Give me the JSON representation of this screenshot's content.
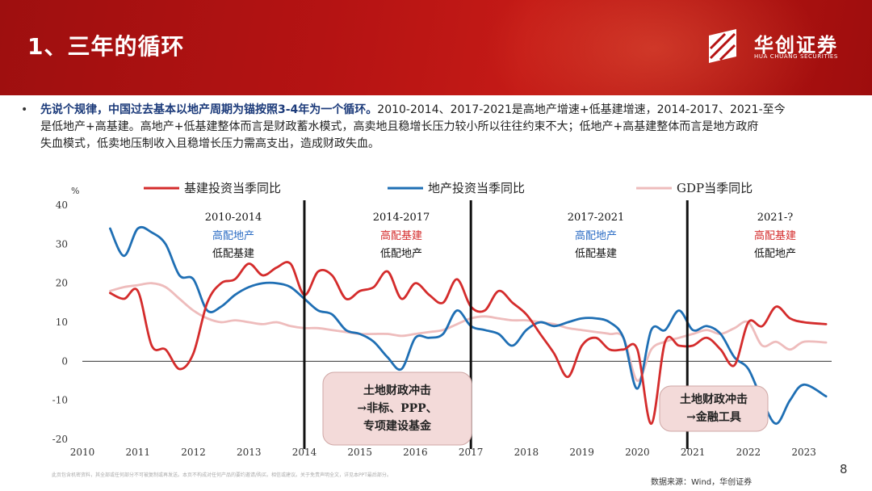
{
  "header": {
    "title": "1、三年的循环",
    "brand_cn": "华创证券",
    "brand_en": "HUA CHUANG SECURITIES"
  },
  "bullet": {
    "lead": "先说个规律，中国过去基本以地产周期为锚按照3-4年为一个循环。",
    "line1_rest": "2010-2014、2017-2021是高地产增速+低基建增速，2014-2017、2021-至今",
    "line2": "是低地产+高基建。高地产+低基建整体而言是财政蓄水模式，高卖地且稳增长压力较小所以往往约束不大；低地产+高基建整体而言是地方政府",
    "line3": "失血模式，低卖地压制收入且稳增长压力需高支出，造成财政失血。"
  },
  "colors": {
    "infra": "#d42c2c",
    "property": "#1f6fb4",
    "gdp": "#eebcbc",
    "blue_text": "#2b6cc4",
    "red_text": "#d42c2c",
    "box_fill": "#f3dad9"
  },
  "chart_data": {
    "type": "line",
    "ylabel": "%",
    "ylim": [
      -20,
      40
    ],
    "yticks": [
      40,
      30,
      20,
      10,
      0,
      -10,
      -20
    ],
    "xlim": [
      2010,
      2023.5
    ],
    "xticks": [
      2010,
      2011,
      2012,
      2013,
      2014,
      2015,
      2016,
      2017,
      2018,
      2019,
      2020,
      2021,
      2022,
      2023
    ],
    "dividers": [
      2014,
      2017,
      2020.9
    ],
    "series": [
      {
        "name": "基建投资当季同比",
        "color": "#d42c2c",
        "points": [
          [
            2010.5,
            17.5
          ],
          [
            2010.75,
            16
          ],
          [
            2011,
            18
          ],
          [
            2011.25,
            4
          ],
          [
            2011.5,
            3
          ],
          [
            2011.75,
            -2
          ],
          [
            2012,
            2
          ],
          [
            2012.25,
            15
          ],
          [
            2012.5,
            20
          ],
          [
            2012.75,
            21
          ],
          [
            2013,
            25
          ],
          [
            2013.25,
            22
          ],
          [
            2013.5,
            24
          ],
          [
            2013.75,
            25
          ],
          [
            2014,
            17
          ],
          [
            2014.25,
            23
          ],
          [
            2014.5,
            22
          ],
          [
            2014.75,
            16
          ],
          [
            2015,
            18
          ],
          [
            2015.25,
            19
          ],
          [
            2015.5,
            23
          ],
          [
            2015.75,
            16
          ],
          [
            2016,
            20
          ],
          [
            2016.25,
            17
          ],
          [
            2016.5,
            15
          ],
          [
            2016.75,
            21
          ],
          [
            2017,
            14
          ],
          [
            2017.25,
            13
          ],
          [
            2017.5,
            18
          ],
          [
            2017.75,
            15
          ],
          [
            2018,
            12
          ],
          [
            2018.25,
            7
          ],
          [
            2018.5,
            2
          ],
          [
            2018.75,
            -4
          ],
          [
            2019,
            4
          ],
          [
            2019.25,
            6
          ],
          [
            2019.5,
            3
          ],
          [
            2019.75,
            3
          ],
          [
            2020,
            3
          ],
          [
            2020.25,
            -16
          ],
          [
            2020.5,
            5
          ],
          [
            2020.75,
            4
          ],
          [
            2021,
            4
          ],
          [
            2021.25,
            6
          ],
          [
            2021.5,
            3
          ],
          [
            2021.75,
            -1
          ],
          [
            2022,
            10
          ],
          [
            2022.25,
            9
          ],
          [
            2022.5,
            14
          ],
          [
            2022.75,
            11
          ],
          [
            2023,
            10
          ],
          [
            2023.4,
            9.5
          ]
        ]
      },
      {
        "name": "地产投资当季同比",
        "color": "#1f6fb4",
        "points": [
          [
            2010.5,
            34
          ],
          [
            2010.75,
            27
          ],
          [
            2011,
            34
          ],
          [
            2011.25,
            33
          ],
          [
            2011.5,
            30
          ],
          [
            2011.75,
            22
          ],
          [
            2012,
            21
          ],
          [
            2012.25,
            13
          ],
          [
            2012.5,
            14
          ],
          [
            2012.75,
            17
          ],
          [
            2013,
            19
          ],
          [
            2013.25,
            20
          ],
          [
            2013.5,
            20
          ],
          [
            2013.75,
            19
          ],
          [
            2014,
            16
          ],
          [
            2014.25,
            13
          ],
          [
            2014.5,
            12
          ],
          [
            2014.75,
            8
          ],
          [
            2015,
            7
          ],
          [
            2015.25,
            5
          ],
          [
            2015.5,
            1
          ],
          [
            2015.75,
            -2
          ],
          [
            2016,
            6
          ],
          [
            2016.25,
            6
          ],
          [
            2016.5,
            7
          ],
          [
            2016.75,
            13
          ],
          [
            2017,
            9
          ],
          [
            2017.25,
            8
          ],
          [
            2017.5,
            7
          ],
          [
            2017.75,
            4
          ],
          [
            2018,
            8
          ],
          [
            2018.25,
            10
          ],
          [
            2018.5,
            9
          ],
          [
            2018.75,
            10
          ],
          [
            2019,
            11
          ],
          [
            2019.25,
            11
          ],
          [
            2019.5,
            10
          ],
          [
            2019.75,
            6
          ],
          [
            2020,
            -7
          ],
          [
            2020.25,
            8
          ],
          [
            2020.5,
            8
          ],
          [
            2020.75,
            13
          ],
          [
            2021,
            8
          ],
          [
            2021.25,
            9
          ],
          [
            2021.5,
            7
          ],
          [
            2021.75,
            1
          ],
          [
            2022,
            -2
          ],
          [
            2022.25,
            -10
          ],
          [
            2022.5,
            -16
          ],
          [
            2022.75,
            -10
          ],
          [
            2023,
            -6
          ],
          [
            2023.4,
            -9
          ]
        ]
      },
      {
        "name": "GDP当季同比",
        "color": "#eebcbc",
        "points": [
          [
            2010.5,
            18
          ],
          [
            2010.75,
            19
          ],
          [
            2011,
            19.5
          ],
          [
            2011.25,
            20
          ],
          [
            2011.5,
            19
          ],
          [
            2011.75,
            16
          ],
          [
            2012,
            13
          ],
          [
            2012.25,
            11
          ],
          [
            2012.5,
            10
          ],
          [
            2012.75,
            10.5
          ],
          [
            2013,
            10
          ],
          [
            2013.25,
            9.5
          ],
          [
            2013.5,
            10
          ],
          [
            2013.75,
            9
          ],
          [
            2014,
            8.5
          ],
          [
            2014.25,
            8.5
          ],
          [
            2014.5,
            8
          ],
          [
            2014.75,
            7.5
          ],
          [
            2015,
            7
          ],
          [
            2015.25,
            7
          ],
          [
            2015.5,
            7
          ],
          [
            2015.75,
            6.5
          ],
          [
            2016,
            7
          ],
          [
            2016.25,
            7.5
          ],
          [
            2016.5,
            8
          ],
          [
            2016.75,
            9.5
          ],
          [
            2017,
            11
          ],
          [
            2017.25,
            11.5
          ],
          [
            2017.5,
            11
          ],
          [
            2017.75,
            10.5
          ],
          [
            2018,
            10.5
          ],
          [
            2018.25,
            10
          ],
          [
            2018.5,
            9.5
          ],
          [
            2018.75,
            8.5
          ],
          [
            2019,
            8
          ],
          [
            2019.25,
            7.5
          ],
          [
            2019.5,
            7
          ],
          [
            2019.75,
            6
          ],
          [
            2020,
            -5
          ],
          [
            2020.25,
            3
          ],
          [
            2020.5,
            5
          ],
          [
            2020.75,
            6
          ],
          [
            2021,
            7
          ],
          [
            2021.25,
            8
          ],
          [
            2021.5,
            7
          ],
          [
            2021.75,
            8.5
          ],
          [
            2022,
            10
          ],
          [
            2022.25,
            4
          ],
          [
            2022.5,
            5
          ],
          [
            2022.75,
            3
          ],
          [
            2023,
            5
          ],
          [
            2023.4,
            4.8
          ]
        ]
      }
    ],
    "periods": [
      {
        "range": "2010-2014",
        "line1": "高配地产",
        "line2": "低配基建",
        "color1": "blue"
      },
      {
        "range": "2014-2017",
        "line1": "高配基建",
        "line2": "低配地产",
        "color1": "red"
      },
      {
        "range": "2017-2021",
        "line1": "高配地产",
        "line2": "低配基建",
        "color1": "blue"
      },
      {
        "range": "2021-?",
        "line1": "高配基建",
        "line2": "低配地产",
        "color1": "red"
      }
    ],
    "callouts": [
      {
        "lines": [
          "土地财政冲击",
          "→非标、PPP、",
          "专项建设基金"
        ]
      },
      {
        "lines": [
          "土地财政冲击",
          "→金融工具"
        ]
      }
    ]
  },
  "footer": {
    "disclaimer": "此页包含机密资料，其全部或任何部分不可被复制或再发送。本页不构成对任何产品的要约邀请/购买。相信或建议。关于免责声明全文，详见本PPT最后部分。",
    "source": "数据来源：Wind，华创证券",
    "page": "8"
  }
}
